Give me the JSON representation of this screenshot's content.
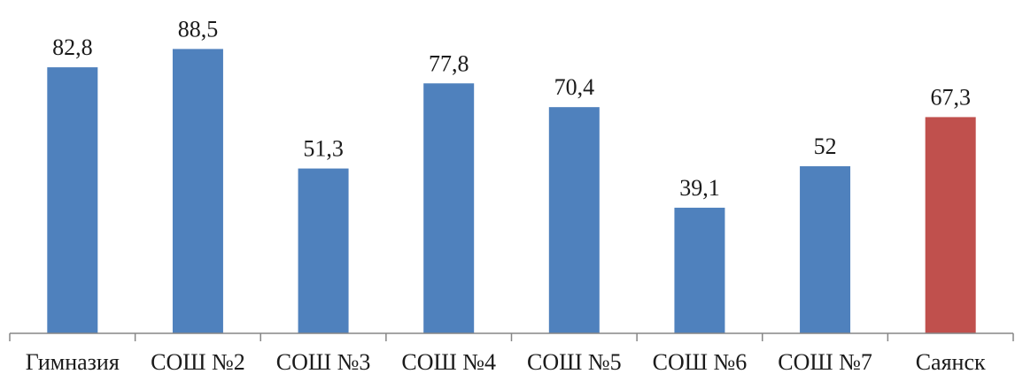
{
  "chart_data": {
    "type": "bar",
    "title": "",
    "xlabel": "",
    "ylabel": "",
    "categories": [
      "Гимназия",
      "СОШ №2",
      "СОШ №3",
      "СОШ №4",
      "СОШ №5",
      "СОШ №6",
      "СОШ №7",
      "Саянск"
    ],
    "values": [
      82.8,
      88.5,
      51.3,
      77.8,
      70.4,
      39.1,
      52,
      67.3
    ],
    "value_labels": [
      "82,8",
      "88,5",
      "51,3",
      "77,8",
      "70,4",
      "39,1",
      "52",
      "67,3"
    ],
    "bar_colors": [
      "#4f81bd",
      "#4f81bd",
      "#4f81bd",
      "#4f81bd",
      "#4f81bd",
      "#4f81bd",
      "#4f81bd",
      "#c0504d"
    ],
    "ylim": [
      0,
      100
    ],
    "grid": false,
    "legend": "none"
  }
}
